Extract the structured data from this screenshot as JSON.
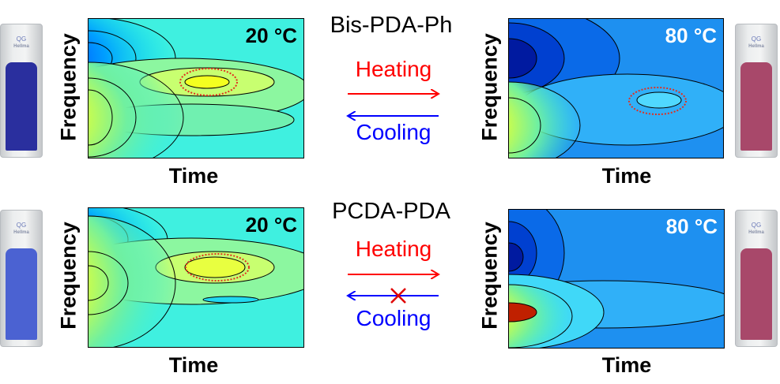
{
  "panels": [
    {
      "compound": "Bis-PDA-Ph",
      "low_temp": "20 °C",
      "high_temp": "80 °C",
      "heating": "Heating",
      "cooling": "Cooling",
      "reversible": true
    },
    {
      "compound": "PCDA-PDA",
      "low_temp": "20 °C",
      "high_temp": "80 °C",
      "heating": "Heating",
      "cooling": "Cooling",
      "reversible": false
    }
  ],
  "axes": {
    "x": "Time",
    "y": "Frequency"
  },
  "cuvette": {
    "logo": "QG",
    "brand": "Hellma"
  },
  "colors": {
    "blue_phase": "#2a2f9e",
    "blue_phase_2": "#4b62d2",
    "red_phase": "#a8486a",
    "heating": "#ff0000",
    "cooling": "#0000ff"
  }
}
